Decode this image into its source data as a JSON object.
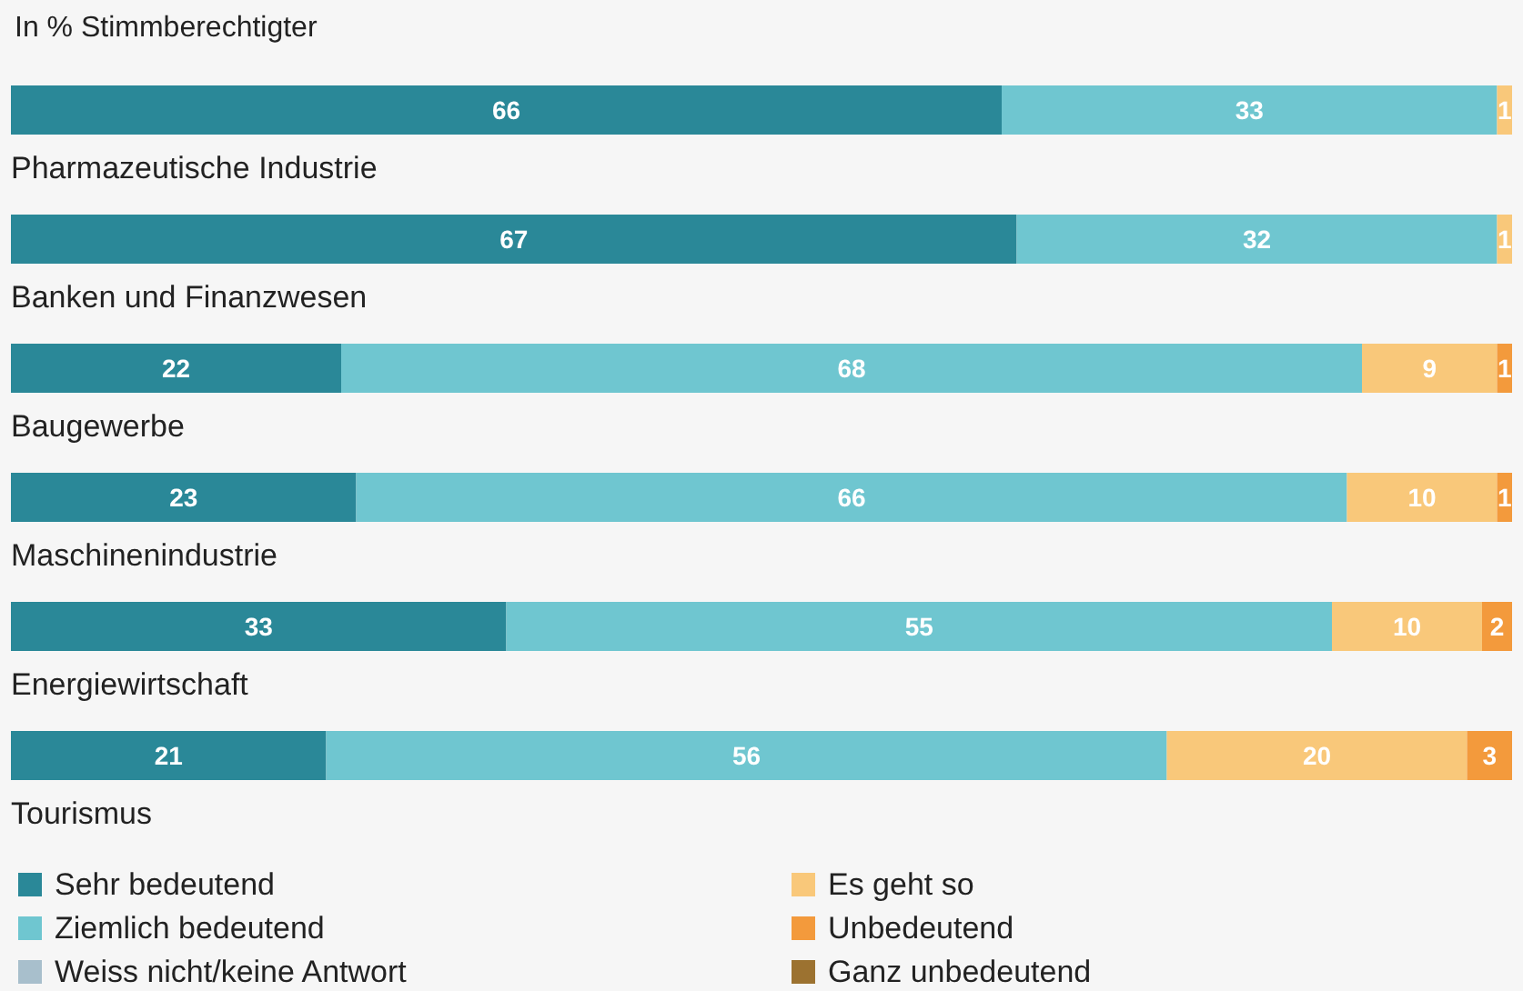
{
  "chart_data": {
    "type": "bar",
    "orientation": "horizontal",
    "stacked": true,
    "title": "In % Stimmberechtigter",
    "categories": [
      "Pharmazeutische Industrie",
      "Banken und Finanzwesen",
      "Baugewerbe",
      "Maschinenindustrie",
      "Energiewirtschaft",
      "Tourismus"
    ],
    "xlim": [
      0,
      100
    ],
    "data_labels": true,
    "legend": "bottom",
    "series": [
      {
        "name": "Sehr bedeutend",
        "color": "#2a8898",
        "values": [
          66,
          67,
          22,
          23,
          33,
          21
        ]
      },
      {
        "name": "Ziemlich bedeutend",
        "color": "#6fc6d0",
        "values": [
          33,
          32,
          68,
          66,
          55,
          56
        ]
      },
      {
        "name": "Weiss nicht/keine Antwort",
        "color": "#a8bfcc",
        "values": [
          null,
          null,
          null,
          null,
          null,
          null
        ]
      },
      {
        "name": "Es geht so",
        "color": "#f9c87a",
        "values": [
          1,
          1,
          9,
          10,
          10,
          20
        ]
      },
      {
        "name": "Unbedeutend",
        "color": "#f39a3c",
        "values": [
          null,
          null,
          1,
          1,
          2,
          3
        ]
      },
      {
        "name": "Ganz unbedeutend",
        "color": "#9c7230",
        "values": [
          null,
          null,
          null,
          null,
          null,
          null
        ]
      }
    ]
  }
}
